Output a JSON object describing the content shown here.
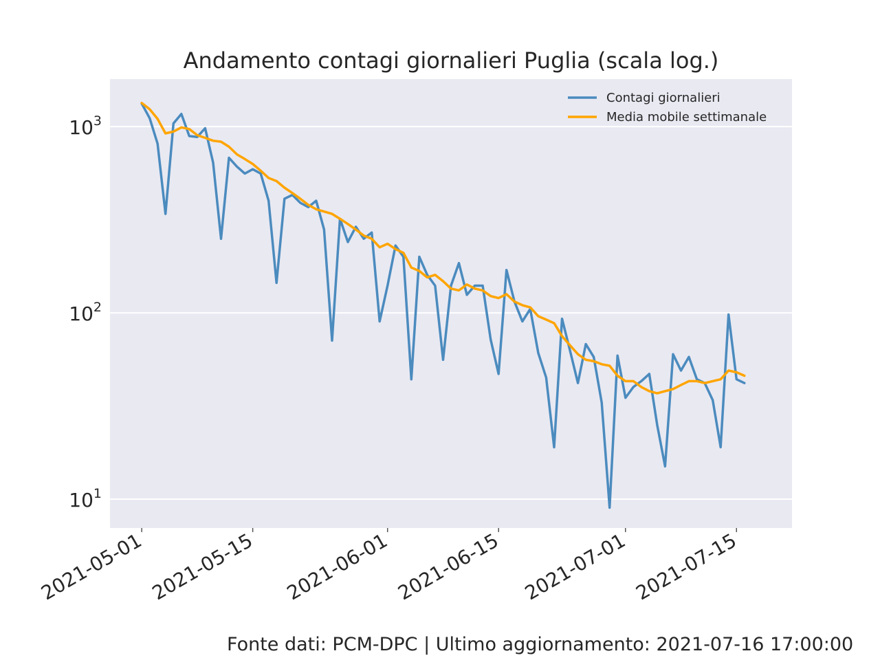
{
  "chart_data": {
    "type": "line",
    "title": "Andamento contagi giornalieri Puglia (scala log.)",
    "xlabel": "",
    "ylabel": "",
    "y_scale": "log",
    "ylim": [
      7,
      1800
    ],
    "xlim": [
      "2021-04-27",
      "2021-07-22"
    ],
    "grid": true,
    "legend_position": "top-right",
    "x_ticks": [
      "2021-05-01",
      "2021-05-15",
      "2021-06-01",
      "2021-06-15",
      "2021-07-01",
      "2021-07-15"
    ],
    "y_ticks": [
      {
        "value": 10,
        "base": "10",
        "exp": "1"
      },
      {
        "value": 100,
        "base": "10",
        "exp": "2"
      },
      {
        "value": 1000,
        "base": "10",
        "exp": "3"
      }
    ],
    "x": [
      "2021-05-01",
      "2021-05-02",
      "2021-05-03",
      "2021-05-04",
      "2021-05-05",
      "2021-05-06",
      "2021-05-07",
      "2021-05-08",
      "2021-05-09",
      "2021-05-10",
      "2021-05-11",
      "2021-05-12",
      "2021-05-13",
      "2021-05-14",
      "2021-05-15",
      "2021-05-16",
      "2021-05-17",
      "2021-05-18",
      "2021-05-19",
      "2021-05-20",
      "2021-05-21",
      "2021-05-22",
      "2021-05-23",
      "2021-05-24",
      "2021-05-25",
      "2021-05-26",
      "2021-05-27",
      "2021-05-28",
      "2021-05-29",
      "2021-05-30",
      "2021-05-31",
      "2021-06-01",
      "2021-06-02",
      "2021-06-03",
      "2021-06-04",
      "2021-06-05",
      "2021-06-06",
      "2021-06-07",
      "2021-06-08",
      "2021-06-09",
      "2021-06-10",
      "2021-06-11",
      "2021-06-12",
      "2021-06-13",
      "2021-06-14",
      "2021-06-15",
      "2021-06-16",
      "2021-06-17",
      "2021-06-18",
      "2021-06-19",
      "2021-06-20",
      "2021-06-21",
      "2021-06-22",
      "2021-06-23",
      "2021-06-24",
      "2021-06-25",
      "2021-06-26",
      "2021-06-27",
      "2021-06-28",
      "2021-06-29",
      "2021-06-30",
      "2021-07-01",
      "2021-07-02",
      "2021-07-03",
      "2021-07-04",
      "2021-07-05",
      "2021-07-06",
      "2021-07-07",
      "2021-07-08",
      "2021-07-09",
      "2021-07-10",
      "2021-07-11",
      "2021-07-12",
      "2021-07-13",
      "2021-07-14",
      "2021-07-15",
      "2021-07-16"
    ],
    "series": [
      {
        "name": "Contagi giornalieri",
        "color": "#4b8bbe",
        "values": [
          1330,
          1110,
          810,
          340,
          1040,
          1170,
          890,
          880,
          980,
          640,
          250,
          680,
          610,
          560,
          590,
          560,
          400,
          145,
          410,
          430,
          390,
          370,
          400,
          280,
          71,
          320,
          240,
          290,
          250,
          270,
          90,
          140,
          230,
          200,
          44,
          200,
          160,
          140,
          56,
          140,
          185,
          125,
          140,
          140,
          72,
          47,
          170,
          115,
          90,
          105,
          61,
          45,
          19,
          93,
          63,
          42,
          68,
          58,
          33,
          9,
          59,
          35,
          40,
          43,
          47,
          25,
          15,
          60,
          49,
          58,
          44,
          42,
          34,
          19,
          98,
          44,
          42
        ]
      },
      {
        "name": "Media mobile settimanale",
        "color": "#ffa500",
        "values": [
          1340,
          1240,
          1100,
          920,
          940,
          990,
          970,
          900,
          870,
          840,
          830,
          780,
          710,
          670,
          630,
          580,
          530,
          510,
          470,
          440,
          410,
          380,
          360,
          350,
          340,
          320,
          300,
          280,
          260,
          250,
          225,
          235,
          220,
          210,
          175,
          168,
          155,
          160,
          148,
          135,
          132,
          142,
          135,
          132,
          123,
          120,
          126,
          115,
          110,
          107,
          96,
          92,
          88,
          75,
          67,
          60,
          56,
          55,
          53,
          52,
          46,
          43,
          43,
          40,
          38,
          37,
          38,
          39,
          41,
          43,
          43,
          42,
          43,
          44,
          49,
          48,
          46
        ]
      }
    ]
  },
  "footer": "Fonte dati: PCM-DPC | Ultimo aggiornamento: 2021-07-16 17:00:00"
}
